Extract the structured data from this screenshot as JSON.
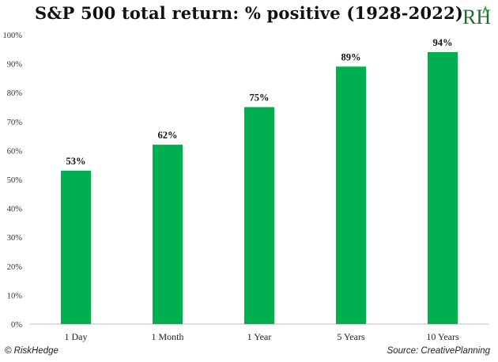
{
  "chart_data": {
    "type": "bar",
    "title": "S&P 500 total return: % positive (1928-2022)",
    "categories": [
      "1 Day",
      "1 Month",
      "1 Year",
      "5 Years",
      "10 Years"
    ],
    "values": [
      53,
      62,
      75,
      89,
      94
    ],
    "data_labels": [
      "53%",
      "62%",
      "75%",
      "89%",
      "94%"
    ],
    "y_ticks": [
      "0%",
      "10%",
      "20%",
      "30%",
      "40%",
      "50%",
      "60%",
      "70%",
      "80%",
      "90%",
      "100%"
    ],
    "ylim": [
      0,
      100
    ],
    "xlabel": "",
    "ylabel": "",
    "grid": false,
    "bar_color": "#00b050"
  },
  "logo": {
    "text": "RH",
    "accent_color": "#1f6b2e"
  },
  "footer": {
    "left": "© RiskHedge",
    "right": "Source: CreativePlanning"
  }
}
